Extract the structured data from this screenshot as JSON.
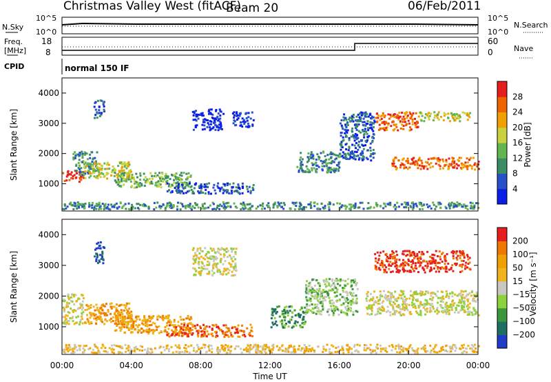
{
  "header": {
    "station": "Christmas Valley West (fitACF)",
    "beam": "Beam 20",
    "date": "06/Feb/2011"
  },
  "top_panels": {
    "nsky_label": "N.Sky",
    "nsearch_label": "N.Search",
    "nsky_ticks": [
      "10^5",
      "10^0"
    ],
    "nsearch_ticks": [
      "10^5",
      "10^0"
    ],
    "freq_label": "Freq.",
    "freq_unit": "[MHz]",
    "freq_ticks": [
      "18",
      "8"
    ],
    "nave_label": "Nave",
    "nave_ticks": [
      "60",
      "0"
    ],
    "cpid_label": "CPID",
    "cpid_value": "normal 150 IF"
  },
  "chart_data": [
    {
      "type": "heatmap",
      "title": "",
      "xlabel": "",
      "ylabel": "Slant Range [km]",
      "yticks": [
        "1000",
        "2000",
        "3000",
        "4000"
      ],
      "colorbar": {
        "label": "Power [dB]",
        "ticks": [
          "4",
          "8",
          "12",
          "16",
          "20",
          "24",
          "28"
        ],
        "colors": [
          "#0a1ee6",
          "#2850c8",
          "#3c8c64",
          "#64b450",
          "#c8d23c",
          "#f0a000",
          "#f06400",
          "#e61e1e"
        ]
      },
      "features": [
        {
          "t0": 0.0,
          "t1": 1.2,
          "r0": 1100,
          "r1": 1500,
          "level": 7
        },
        {
          "t0": 0.6,
          "t1": 2.0,
          "r0": 1300,
          "r1": 2100,
          "level": 2
        },
        {
          "t0": 1.2,
          "t1": 4.0,
          "r0": 1200,
          "r1": 1750,
          "level": 4
        },
        {
          "t0": 3.0,
          "t1": 7.5,
          "r0": 900,
          "r1": 1400,
          "level": 3
        },
        {
          "t0": 6.0,
          "t1": 11.0,
          "r0": 700,
          "r1": 1050,
          "level": 1
        },
        {
          "t0": 1.8,
          "t1": 2.4,
          "r0": 3200,
          "r1": 3800,
          "level": 1
        },
        {
          "t0": 7.5,
          "t1": 9.3,
          "r0": 2800,
          "r1": 3500,
          "level": 0
        },
        {
          "t0": 9.8,
          "t1": 11.0,
          "r0": 2900,
          "r1": 3400,
          "level": 0
        },
        {
          "t0": 13.5,
          "t1": 16.0,
          "r0": 1400,
          "r1": 2100,
          "level": 2
        },
        {
          "t0": 16.0,
          "t1": 18.0,
          "r0": 1800,
          "r1": 3400,
          "level": 1
        },
        {
          "t0": 18.0,
          "t1": 20.5,
          "r0": 2800,
          "r1": 3400,
          "level": 6
        },
        {
          "t0": 20.5,
          "t1": 23.5,
          "r0": 3100,
          "r1": 3400,
          "level": 4
        },
        {
          "t0": 19.0,
          "t1": 24.0,
          "r0": 1500,
          "r1": 1900,
          "level": 6
        },
        {
          "t0": 0.0,
          "t1": 24.0,
          "r0": 180,
          "r1": 420,
          "level": 2
        }
      ]
    },
    {
      "type": "heatmap",
      "title": "",
      "xlabel": "Time UT",
      "ylabel": "Slant Range [km]",
      "yticks": [
        "1000",
        "2000",
        "3000",
        "4000"
      ],
      "xticks": [
        "00:00",
        "04:00",
        "08:00",
        "12:00",
        "16:00",
        "20:00",
        "00:00"
      ],
      "colorbar": {
        "label": "Velocity [m s⁻¹]",
        "ticks": [
          "200",
          "100",
          "50",
          "15",
          "−15",
          "−50",
          "−100",
          "−200"
        ],
        "colors": [
          "#1e3cc8",
          "#1e6e64",
          "#3c963c",
          "#8cd23c",
          "#c8c8c0",
          "#f0b41e",
          "#f0a000",
          "#f07800",
          "#e61e1e"
        ]
      },
      "features": [
        {
          "t0": 0.0,
          "t1": 1.2,
          "r0": 1100,
          "r1": 2100,
          "level": 4
        },
        {
          "t0": 1.2,
          "t1": 4.0,
          "r0": 1100,
          "r1": 1800,
          "level": 6
        },
        {
          "t0": 3.0,
          "t1": 7.5,
          "r0": 800,
          "r1": 1400,
          "level": 6
        },
        {
          "t0": 6.0,
          "t1": 11.0,
          "r0": 700,
          "r1": 1100,
          "level": 7
        },
        {
          "t0": 1.8,
          "t1": 2.4,
          "r0": 3100,
          "r1": 3800,
          "level": 0
        },
        {
          "t0": 7.5,
          "t1": 10.0,
          "r0": 2700,
          "r1": 3600,
          "level": 4
        },
        {
          "t0": 12.0,
          "t1": 14.0,
          "r0": 1000,
          "r1": 1700,
          "level": 2
        },
        {
          "t0": 14.0,
          "t1": 17.0,
          "r0": 1400,
          "r1": 2600,
          "level": 3
        },
        {
          "t0": 18.0,
          "t1": 23.5,
          "r0": 2800,
          "r1": 3500,
          "level": 8
        },
        {
          "t0": 17.5,
          "t1": 24.0,
          "r0": 1400,
          "r1": 2200,
          "level": 4
        },
        {
          "t0": 0.0,
          "t1": 24.0,
          "r0": 180,
          "r1": 450,
          "level": 5
        }
      ]
    }
  ]
}
